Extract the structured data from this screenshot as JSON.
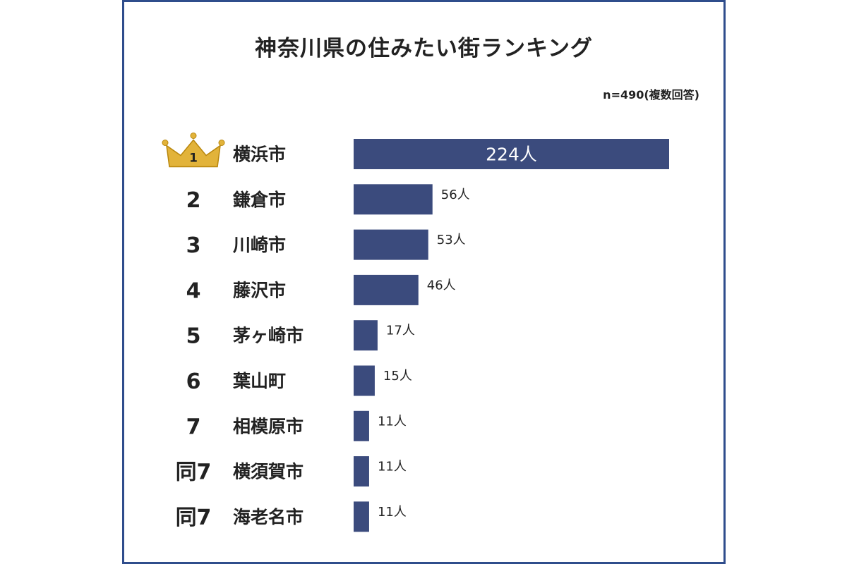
{
  "title": "神奈川県の住みたい街ランキング",
  "note": "n=490(複数回答)",
  "colors": {
    "bar": "#3b4b7d",
    "frame": "#2f4d8c",
    "crown": "#e2b33a",
    "crown_stroke": "#b8860b"
  },
  "chart_data": {
    "type": "bar",
    "orientation": "horizontal",
    "unit": "人",
    "first_rank_icon": "crown-icon",
    "rows": [
      {
        "rank": "1",
        "category": "横浜市",
        "value": 224,
        "label": "224人"
      },
      {
        "rank": "2",
        "category": "鎌倉市",
        "value": 56,
        "label": "56人"
      },
      {
        "rank": "3",
        "category": "川崎市",
        "value": 53,
        "label": "53人"
      },
      {
        "rank": "4",
        "category": "藤沢市",
        "value": 46,
        "label": "46人"
      },
      {
        "rank": "5",
        "category": "茅ヶ崎市",
        "value": 17,
        "label": "17人"
      },
      {
        "rank": "6",
        "category": "葉山町",
        "value": 15,
        "label": "15人"
      },
      {
        "rank": "7",
        "category": "相模原市",
        "value": 11,
        "label": "11人"
      },
      {
        "rank": "同7",
        "category": "横須賀市",
        "value": 11,
        "label": "11人"
      },
      {
        "rank": "同7",
        "category": "海老名市",
        "value": 11,
        "label": "11人"
      }
    ]
  }
}
